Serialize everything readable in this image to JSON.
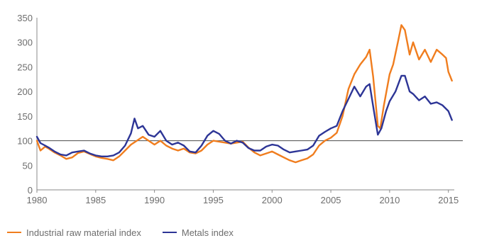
{
  "chart_data": {
    "type": "line",
    "title": "",
    "xlabel": "",
    "ylabel": "",
    "xlim": [
      1980,
      2015.5
    ],
    "ylim": [
      0,
      350
    ],
    "x_ticks": [
      "1980",
      "1985",
      "1990",
      "1995",
      "2000",
      "2005",
      "2010",
      "2015"
    ],
    "y_ticks": [
      "0",
      "50",
      "100",
      "150",
      "200",
      "250",
      "300",
      "350"
    ],
    "reference_line": 100,
    "grid": false,
    "legend_position": "bottom-left",
    "series": [
      {
        "name": "Industrial raw material index",
        "color": "#f07d1e",
        "points": [
          [
            1980.0,
            100
          ],
          [
            1980.3,
            80
          ],
          [
            1980.7,
            88
          ],
          [
            1981.0,
            84
          ],
          [
            1981.5,
            76
          ],
          [
            1982.0,
            70
          ],
          [
            1982.5,
            63
          ],
          [
            1983.0,
            66
          ],
          [
            1983.5,
            75
          ],
          [
            1984.0,
            78
          ],
          [
            1984.5,
            73
          ],
          [
            1985.0,
            68
          ],
          [
            1985.5,
            65
          ],
          [
            1986.0,
            63
          ],
          [
            1986.5,
            60
          ],
          [
            1987.0,
            68
          ],
          [
            1987.5,
            80
          ],
          [
            1988.0,
            92
          ],
          [
            1988.5,
            100
          ],
          [
            1989.0,
            108
          ],
          [
            1989.5,
            100
          ],
          [
            1990.0,
            92
          ],
          [
            1990.5,
            100
          ],
          [
            1991.0,
            90
          ],
          [
            1991.5,
            84
          ],
          [
            1992.0,
            80
          ],
          [
            1992.5,
            84
          ],
          [
            1993.0,
            76
          ],
          [
            1993.5,
            74
          ],
          [
            1994.0,
            80
          ],
          [
            1994.5,
            92
          ],
          [
            1995.0,
            100
          ],
          [
            1995.5,
            98
          ],
          [
            1996.0,
            96
          ],
          [
            1996.5,
            94
          ],
          [
            1997.0,
            96
          ],
          [
            1997.5,
            98
          ],
          [
            1998.0,
            86
          ],
          [
            1998.5,
            76
          ],
          [
            1999.0,
            70
          ],
          [
            1999.5,
            74
          ],
          [
            2000.0,
            78
          ],
          [
            2000.5,
            72
          ],
          [
            2001.0,
            66
          ],
          [
            2001.5,
            60
          ],
          [
            2002.0,
            56
          ],
          [
            2002.5,
            60
          ],
          [
            2003.0,
            64
          ],
          [
            2003.5,
            72
          ],
          [
            2004.0,
            90
          ],
          [
            2004.5,
            100
          ],
          [
            2005.0,
            106
          ],
          [
            2005.5,
            116
          ],
          [
            2006.0,
            150
          ],
          [
            2006.5,
            205
          ],
          [
            2007.0,
            235
          ],
          [
            2007.5,
            255
          ],
          [
            2008.0,
            270
          ],
          [
            2008.3,
            285
          ],
          [
            2008.6,
            230
          ],
          [
            2009.0,
            130
          ],
          [
            2009.2,
            125
          ],
          [
            2009.5,
            170
          ],
          [
            2010.0,
            235
          ],
          [
            2010.3,
            255
          ],
          [
            2010.7,
            300
          ],
          [
            2011.0,
            335
          ],
          [
            2011.3,
            325
          ],
          [
            2011.7,
            275
          ],
          [
            2012.0,
            300
          ],
          [
            2012.5,
            265
          ],
          [
            2013.0,
            285
          ],
          [
            2013.5,
            260
          ],
          [
            2014.0,
            285
          ],
          [
            2014.5,
            275
          ],
          [
            2014.8,
            268
          ],
          [
            2015.0,
            240
          ],
          [
            2015.3,
            222
          ]
        ]
      },
      {
        "name": "Metals index",
        "color": "#2d3596",
        "points": [
          [
            1980.0,
            108
          ],
          [
            1980.3,
            95
          ],
          [
            1980.7,
            90
          ],
          [
            1981.0,
            86
          ],
          [
            1981.5,
            78
          ],
          [
            1982.0,
            72
          ],
          [
            1982.5,
            70
          ],
          [
            1983.0,
            76
          ],
          [
            1983.5,
            78
          ],
          [
            1984.0,
            80
          ],
          [
            1984.5,
            74
          ],
          [
            1985.0,
            70
          ],
          [
            1985.5,
            68
          ],
          [
            1986.0,
            68
          ],
          [
            1986.5,
            70
          ],
          [
            1987.0,
            76
          ],
          [
            1987.5,
            90
          ],
          [
            1988.0,
            115
          ],
          [
            1988.3,
            145
          ],
          [
            1988.6,
            125
          ],
          [
            1989.0,
            130
          ],
          [
            1989.5,
            112
          ],
          [
            1990.0,
            108
          ],
          [
            1990.5,
            120
          ],
          [
            1991.0,
            100
          ],
          [
            1991.5,
            92
          ],
          [
            1992.0,
            96
          ],
          [
            1992.5,
            90
          ],
          [
            1993.0,
            78
          ],
          [
            1993.5,
            76
          ],
          [
            1994.0,
            90
          ],
          [
            1994.5,
            110
          ],
          [
            1995.0,
            120
          ],
          [
            1995.5,
            114
          ],
          [
            1996.0,
            100
          ],
          [
            1996.5,
            94
          ],
          [
            1997.0,
            100
          ],
          [
            1997.5,
            96
          ],
          [
            1998.0,
            85
          ],
          [
            1998.5,
            80
          ],
          [
            1999.0,
            80
          ],
          [
            1999.5,
            88
          ],
          [
            2000.0,
            92
          ],
          [
            2000.5,
            90
          ],
          [
            2001.0,
            82
          ],
          [
            2001.5,
            76
          ],
          [
            2002.0,
            78
          ],
          [
            2002.5,
            80
          ],
          [
            2003.0,
            82
          ],
          [
            2003.5,
            90
          ],
          [
            2004.0,
            110
          ],
          [
            2004.5,
            118
          ],
          [
            2005.0,
            125
          ],
          [
            2005.5,
            130
          ],
          [
            2006.0,
            160
          ],
          [
            2006.5,
            185
          ],
          [
            2007.0,
            210
          ],
          [
            2007.5,
            190
          ],
          [
            2008.0,
            210
          ],
          [
            2008.3,
            215
          ],
          [
            2008.6,
            170
          ],
          [
            2009.0,
            112
          ],
          [
            2009.3,
            125
          ],
          [
            2009.7,
            160
          ],
          [
            2010.0,
            180
          ],
          [
            2010.5,
            200
          ],
          [
            2011.0,
            232
          ],
          [
            2011.3,
            232
          ],
          [
            2011.7,
            200
          ],
          [
            2012.0,
            195
          ],
          [
            2012.5,
            182
          ],
          [
            2013.0,
            190
          ],
          [
            2013.5,
            175
          ],
          [
            2014.0,
            178
          ],
          [
            2014.5,
            172
          ],
          [
            2015.0,
            160
          ],
          [
            2015.3,
            142
          ]
        ]
      }
    ]
  }
}
